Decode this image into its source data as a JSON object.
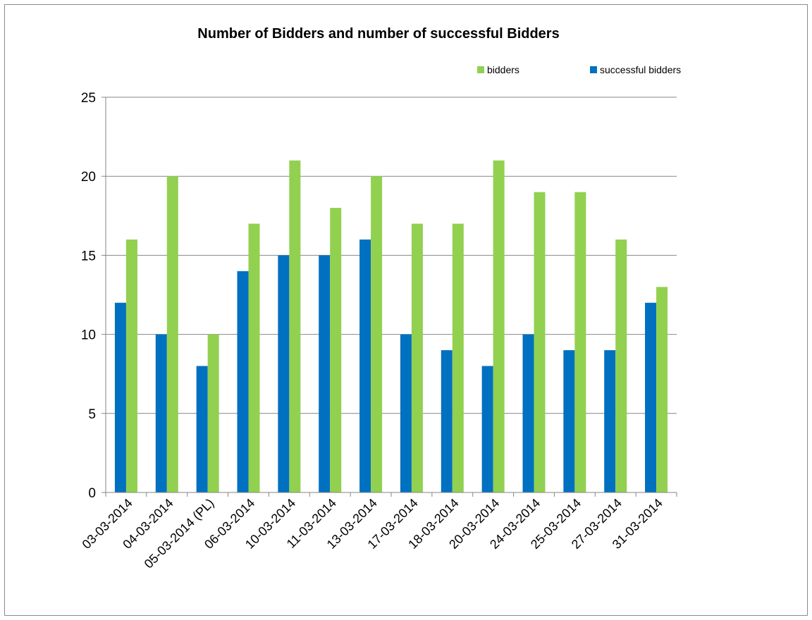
{
  "chart_data": {
    "type": "bar",
    "title": "Number of Bidders and number of successful  Bidders",
    "xlabel": "",
    "ylabel": "",
    "categories": [
      "03-03-2014",
      "04-03-2014",
      "05-03-2014 (PL)",
      "06-03-2014",
      "10-03-2014",
      "11-03-2014",
      "13-03-2014",
      "17-03-2014",
      "18-03-2014",
      "20-03-2014",
      "24-03-2014",
      "25-03-2014",
      "27-03-2014",
      "31-03-2014"
    ],
    "series": [
      {
        "name": "successful bidders",
        "color": "#0070c0",
        "values": [
          12,
          10,
          8,
          14,
          15,
          15,
          16,
          10,
          9,
          8,
          10,
          9,
          9,
          12
        ]
      },
      {
        "name": "bidders",
        "color": "#92d050",
        "values": [
          16,
          20,
          10,
          17,
          21,
          18,
          20,
          17,
          17,
          21,
          19,
          19,
          16,
          13
        ]
      }
    ],
    "legend_order": [
      "bidders",
      "successful bidders"
    ],
    "ylim": [
      0,
      25
    ],
    "yticks": [
      0,
      5,
      10,
      15,
      20,
      25
    ],
    "grid": true,
    "legend_position": "top-right"
  }
}
